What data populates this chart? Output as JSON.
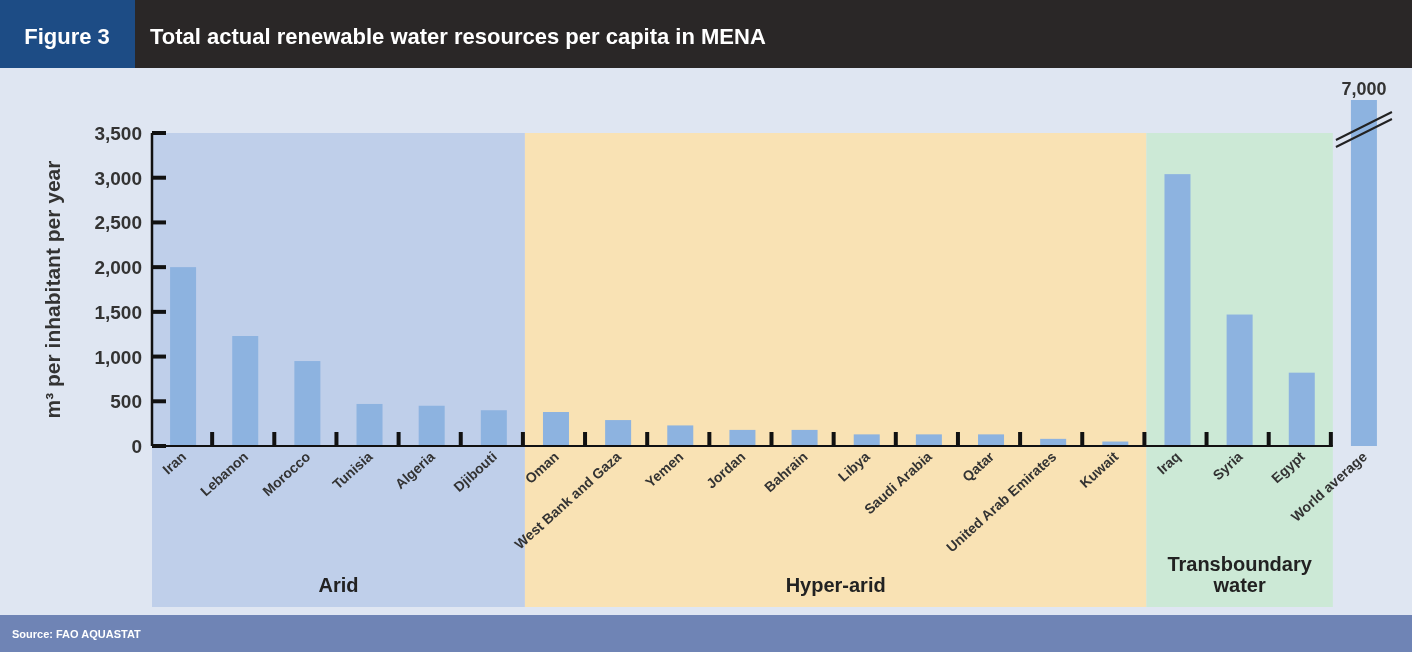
{
  "chart_data": {
    "type": "bar",
    "title": "Total actual renewable water resources per capita in MENA",
    "ylabel": "m³ per inhabitant per year",
    "annotations": [
      "Figure 3",
      "Source: FAO AQUASTAT"
    ],
    "categories": [
      "Iran",
      "Lebanon",
      "Morocco",
      "Tunisia",
      "Algeria",
      "Djibouti",
      "Oman",
      "West Bank and Gaza",
      "Yemen",
      "Jordan",
      "Bahrain",
      "Libya",
      "Saudi Arabia",
      "Qatar",
      "United Arab Emirates",
      "Kuwait",
      "Iraq",
      "Syria",
      "Egypt",
      "World average"
    ],
    "series": [
      {
        "color": "#8db3e0",
        "values": [
          2000,
          1230,
          950,
          470,
          450,
          400,
          380,
          290,
          230,
          180,
          180,
          130,
          130,
          130,
          80,
          50,
          3040,
          1470,
          820,
          null
        ]
      },
      {
        "color": "#8db3e0",
        "axis": "y2",
        "values": [
          null,
          null,
          null,
          null,
          null,
          null,
          null,
          null,
          null,
          null,
          null,
          null,
          null,
          null,
          null,
          null,
          null,
          null,
          null,
          7000
        ],
        "value_labels": [
          null,
          null,
          null,
          null,
          null,
          null,
          null,
          null,
          null,
          null,
          null,
          null,
          null,
          null,
          null,
          null,
          null,
          null,
          null,
          "7,000"
        ]
      }
    ],
    "ylim": [
      0,
      3500
    ],
    "yticks": [
      0,
      500,
      {
        "value": 1000,
        "label": "1,000"
      },
      {
        "value": 1500,
        "label": "1,500"
      },
      {
        "value": 2000,
        "label": "2,000"
      },
      {
        "value": 2500,
        "label": "2,500"
      },
      {
        "value": 3000,
        "label": "3,000"
      },
      {
        "value": 3500,
        "label": "3,500"
      }
    ],
    "y2lim": [
      0,
      7000
    ],
    "tick_labels": [
      "x",
      "y"
    ],
    "bands": [
      {
        "axis": "x",
        "from": "Iran",
        "to": "Djibouti",
        "label": "Arid",
        "color": "#bfcfea"
      },
      {
        "axis": "x",
        "from": "Oman",
        "to": "Kuwait",
        "label": "Hyper-arid",
        "color": "#f9e2b4"
      },
      {
        "axis": "x",
        "from": "Iraq",
        "to": "Egypt",
        "label": "Transboundary water",
        "color": "#cce9d6"
      }
    ],
    "grid": false
  }
}
